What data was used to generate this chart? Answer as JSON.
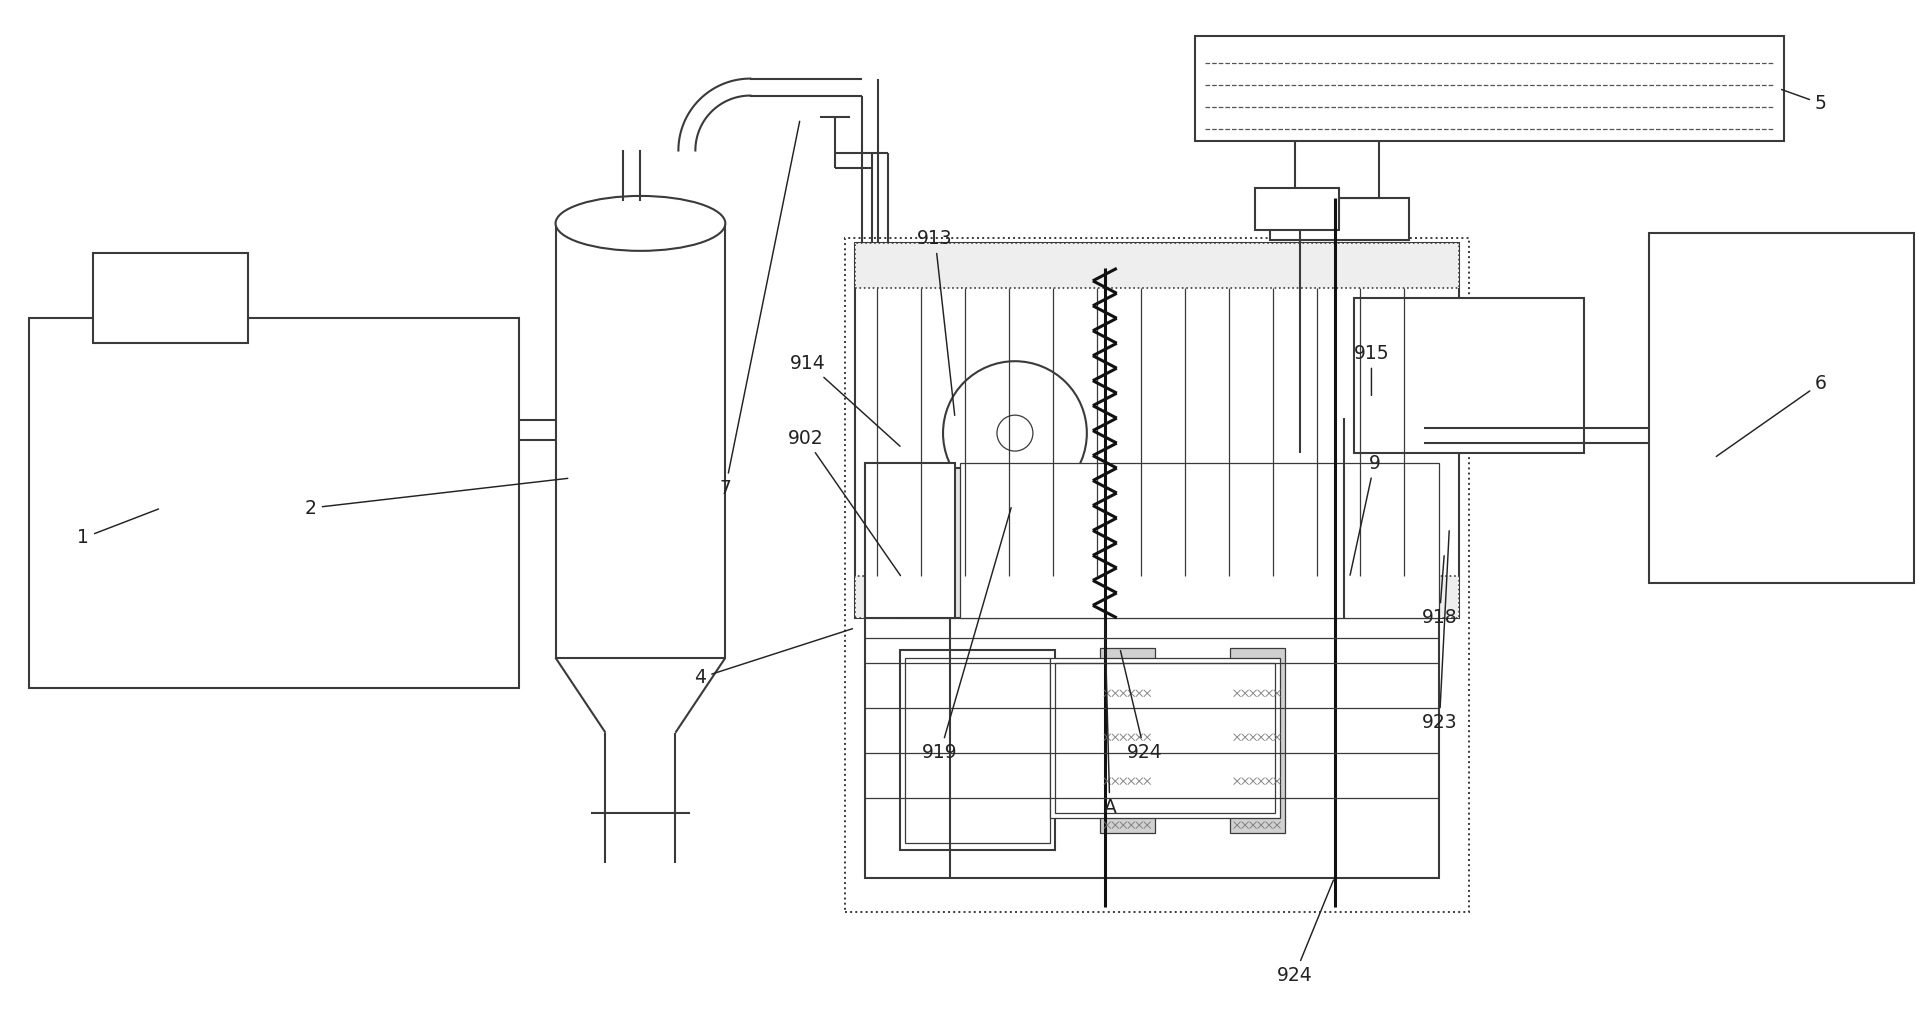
{
  "bg": "#ffffff",
  "lc": "#3a3a3a",
  "dc": "#111111",
  "figsize": [
    19.32,
    10.28
  ],
  "dpi": 100,
  "lw": 1.5,
  "lw_thin": 0.9,
  "lw_thick": 2.2,
  "label_fs": 13.5,
  "label_color": "#222222"
}
